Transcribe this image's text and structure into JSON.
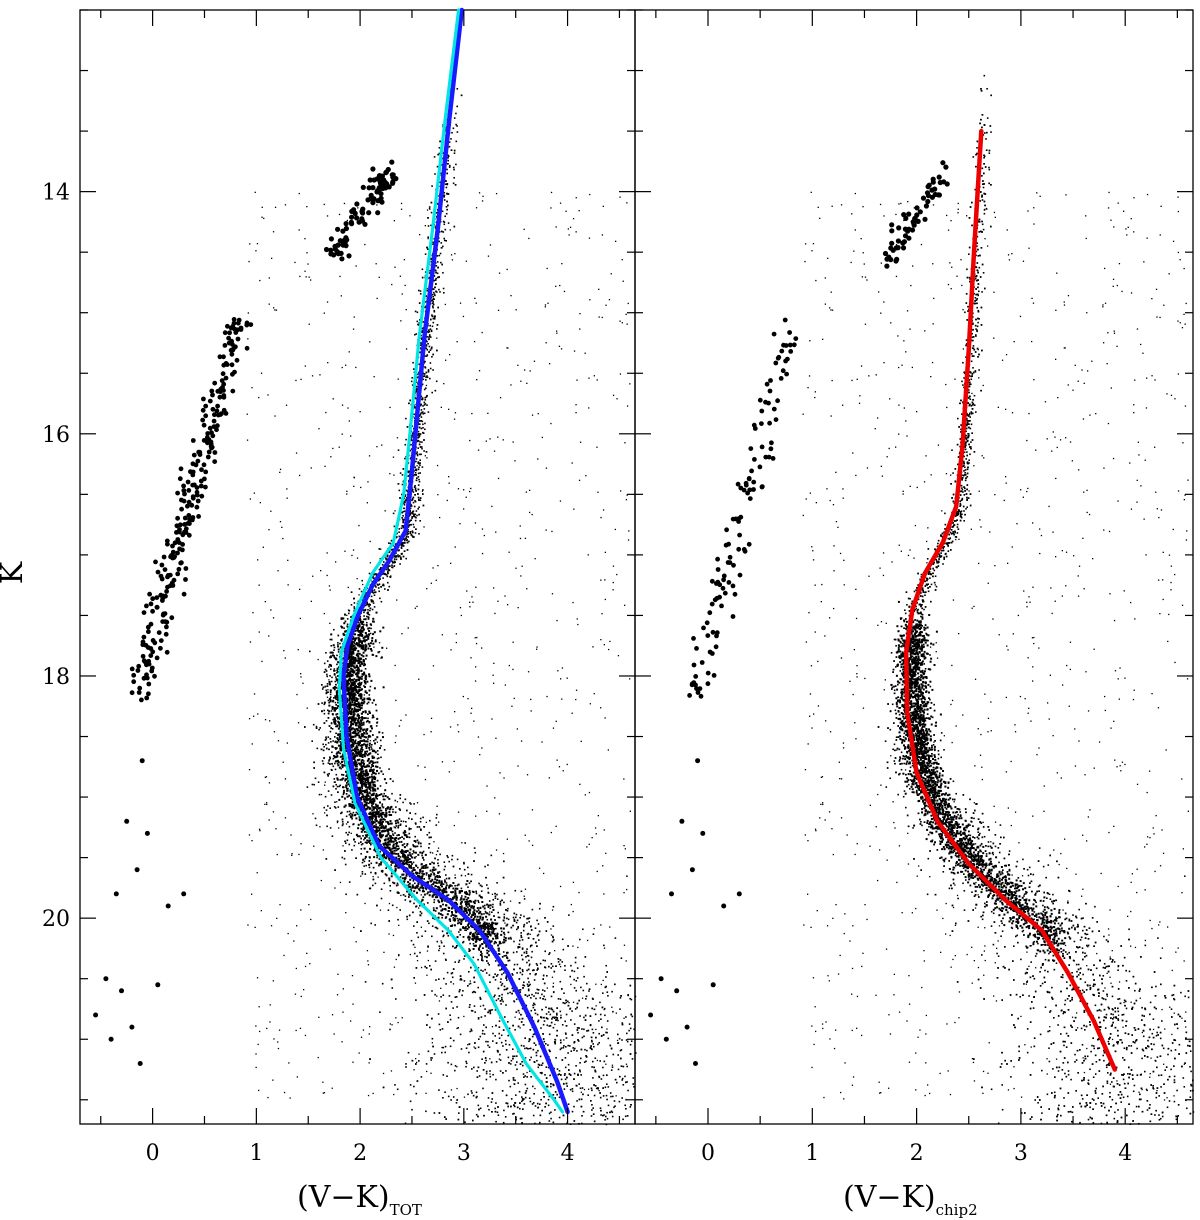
{
  "chart_data": [
    {
      "type": "scatter",
      "panel": "left",
      "xlabel": "(V−K)",
      "xlabel_sub": "TOT",
      "ylabel": "K",
      "xlim": [
        -0.7,
        4.65
      ],
      "ylim": [
        21.7,
        12.5
      ],
      "y_inverted": true,
      "x_ticks": [
        0,
        1,
        2,
        3,
        4
      ],
      "y_ticks": [
        14,
        16,
        18,
        20
      ],
      "y_tick_labels": [
        "14",
        "16",
        "18",
        "20"
      ],
      "x_tick_labels": [
        "0",
        "1",
        "2",
        "3",
        "4"
      ],
      "series": [
        {
          "kind": "line",
          "color": "#1a1aff",
          "points": [
            [
              2.98,
              12.5
            ],
            [
              2.86,
              13.4
            ],
            [
              2.75,
              14.3
            ],
            [
              2.62,
              15.2
            ],
            [
              2.5,
              16.3
            ],
            [
              2.44,
              16.8
            ],
            [
              2.28,
              17.05
            ],
            [
              2.12,
              17.25
            ],
            [
              1.98,
              17.5
            ],
            [
              1.88,
              17.75
            ],
            [
              1.84,
              18.0
            ],
            [
              1.87,
              18.5
            ],
            [
              1.97,
              19.0
            ],
            [
              2.18,
              19.4
            ],
            [
              2.5,
              19.65
            ],
            [
              2.85,
              19.85
            ],
            [
              3.15,
              20.1
            ],
            [
              3.42,
              20.45
            ],
            [
              3.68,
              20.9
            ],
            [
              3.9,
              21.35
            ],
            [
              4.0,
              21.6
            ]
          ]
        },
        {
          "kind": "line",
          "color": "#00e5e5",
          "points": [
            [
              2.95,
              12.5
            ],
            [
              2.82,
              13.4
            ],
            [
              2.7,
              14.3
            ],
            [
              2.57,
              15.2
            ],
            [
              2.48,
              16.0
            ],
            [
              2.42,
              16.5
            ],
            [
              2.32,
              16.9
            ],
            [
              2.12,
              17.15
            ],
            [
              1.94,
              17.5
            ],
            [
              1.82,
              17.8
            ],
            [
              1.8,
              18.1
            ],
            [
              1.84,
              18.6
            ],
            [
              1.95,
              19.05
            ],
            [
              2.2,
              19.5
            ],
            [
              2.55,
              19.85
            ],
            [
              2.85,
              20.1
            ],
            [
              3.1,
              20.38
            ],
            [
              3.35,
              20.8
            ],
            [
              3.6,
              21.2
            ],
            [
              3.87,
              21.5
            ],
            [
              3.95,
              21.6
            ]
          ]
        }
      ],
      "scatter_groups": [
        "main-sequence",
        "blue-horizontal-branch",
        "red-clump",
        "field"
      ]
    },
    {
      "type": "scatter",
      "panel": "right",
      "xlabel": "(V−K)",
      "xlabel_sub": "chip2",
      "xlim": [
        -0.7,
        4.65
      ],
      "ylim": [
        21.7,
        12.5
      ],
      "y_inverted": true,
      "x_ticks": [
        0,
        1,
        2,
        3,
        4
      ],
      "y_ticks": [
        14,
        16,
        18,
        20
      ],
      "x_tick_labels": [
        "0",
        "1",
        "2",
        "3",
        "4"
      ],
      "series": [
        {
          "kind": "line",
          "color": "#ee0000",
          "points": [
            [
              2.62,
              13.5
            ],
            [
              2.55,
              14.5
            ],
            [
              2.5,
              15.3
            ],
            [
              2.44,
              16.1
            ],
            [
              2.38,
              16.6
            ],
            [
              2.25,
              16.9
            ],
            [
              2.08,
              17.15
            ],
            [
              1.96,
              17.45
            ],
            [
              1.9,
              17.8
            ],
            [
              1.91,
              18.3
            ],
            [
              2.0,
              18.8
            ],
            [
              2.2,
              19.2
            ],
            [
              2.5,
              19.55
            ],
            [
              2.85,
              19.85
            ],
            [
              3.2,
              20.1
            ],
            [
              3.45,
              20.45
            ],
            [
              3.7,
              20.85
            ],
            [
              3.9,
              21.25
            ]
          ]
        }
      ],
      "scatter_groups": [
        "main-sequence",
        "blue-horizontal-branch",
        "red-clump",
        "field"
      ]
    }
  ]
}
